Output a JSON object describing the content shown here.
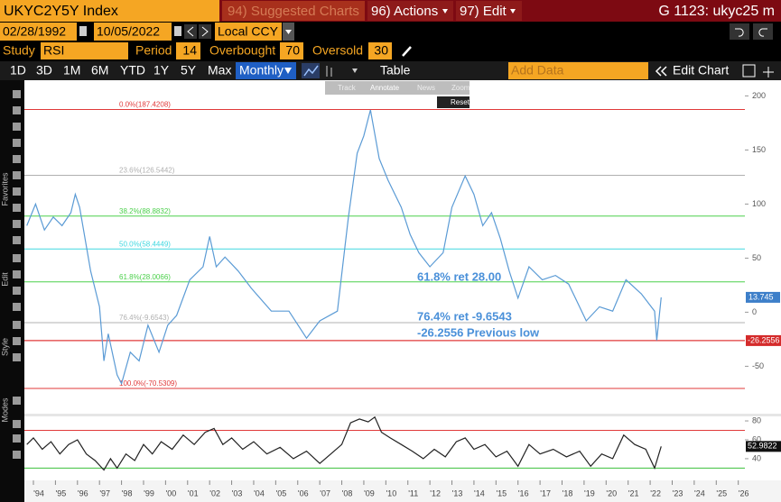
{
  "header": {
    "ticker": "UKYC2Y5Y Index",
    "suggested": "94) Suggested Charts",
    "actions": "96) Actions",
    "edit": "97) Edit",
    "chart_id": "G 1123: ukyc25 m"
  },
  "dates": {
    "start": "02/28/1992",
    "end": "10/05/2022",
    "currency": "Local CCY"
  },
  "study": {
    "label": "Study",
    "name": "RSI",
    "period_label": "Period",
    "period": 14,
    "overbought_label": "Overbought",
    "overbought": 70,
    "oversold_label": "Oversold",
    "oversold": 30
  },
  "toolbar": {
    "ranges": [
      "1D",
      "3D",
      "1M",
      "6M",
      "YTD",
      "1Y",
      "5Y",
      "Max"
    ],
    "frequency": "Monthly",
    "table": "Table",
    "add_data": "Add Data",
    "edit_chart": "Edit Chart"
  },
  "chart_tools": [
    "Track",
    "Annotate",
    "News",
    "Zoom"
  ],
  "reset": "Reset",
  "sidebar": [
    "Favorites",
    "Edit",
    "Style",
    "Modes"
  ],
  "chart_data": [
    {
      "type": "line",
      "color": "#5b9bd5",
      "x": [
        1993.7,
        1994.1,
        1994.5,
        1994.9,
        1995.3,
        1995.7,
        1995.9,
        1996.1,
        1996.6,
        1997.0,
        1997.2,
        1997.4,
        1997.8,
        1998.0,
        1998.4,
        1998.8,
        1999.2,
        1999.7,
        2000.1,
        2000.5,
        2001.1,
        2001.7,
        2002.0,
        2002.3,
        2002.7,
        2003.3,
        2003.9,
        2004.8,
        2005.6,
        2006.4,
        2007.0,
        2007.8,
        2008.3,
        2008.7,
        2009.0,
        2009.3,
        2009.7,
        2010.1,
        2010.7,
        2011.1,
        2011.5,
        2012.0,
        2012.6,
        2013.0,
        2013.6,
        2014.0,
        2014.4,
        2014.8,
        2015.2,
        2015.6,
        2016.0,
        2016.5,
        2017.1,
        2017.7,
        2018.3,
        2018.7,
        2019.1,
        2019.7,
        2020.3,
        2020.9,
        2021.6,
        2022.2,
        2022.3,
        2022.5
      ],
      "values": [
        80,
        100,
        76,
        88,
        80,
        92,
        109,
        97,
        38,
        5,
        -45,
        -20,
        -58,
        -66,
        -37,
        -45,
        -12,
        -37,
        -12,
        -3,
        30,
        42,
        70,
        42,
        51,
        38,
        22,
        1,
        1,
        -24,
        -8,
        1,
        88,
        147,
        163,
        187,
        142,
        122,
        97,
        72,
        55,
        42,
        55,
        97,
        126,
        109,
        80,
        92,
        68,
        38,
        13,
        42,
        30,
        34,
        26,
        9,
        -8,
        5,
        1,
        30,
        17,
        1,
        -26,
        13.745
      ],
      "xlim": [
        1993.59,
        2026.3
      ],
      "xticks": [
        {
          "value": 1994,
          "label": "'94"
        },
        {
          "value": 1995,
          "label": "'95"
        },
        {
          "value": 1996,
          "label": "'96"
        },
        {
          "value": 1997,
          "label": "'97"
        },
        {
          "value": 1998,
          "label": "'98"
        },
        {
          "value": 1999,
          "label": "'99"
        },
        {
          "value": 2000,
          "label": "'00"
        },
        {
          "value": 2001,
          "label": "'01"
        },
        {
          "value": 2002,
          "label": "'02"
        },
        {
          "value": 2003,
          "label": "'03"
        },
        {
          "value": 2004,
          "label": "'04"
        },
        {
          "value": 2005,
          "label": "'05"
        },
        {
          "value": 2006,
          "label": "'06"
        },
        {
          "value": 2007,
          "label": "'07"
        },
        {
          "value": 2008,
          "label": "'08"
        },
        {
          "value": 2009,
          "label": "'09"
        },
        {
          "value": 2010,
          "label": "'10"
        },
        {
          "value": 2011,
          "label": "'11"
        },
        {
          "value": 2012,
          "label": "'12"
        },
        {
          "value": 2013,
          "label": "'13"
        },
        {
          "value": 2014,
          "label": "'14"
        },
        {
          "value": 2015,
          "label": "'15"
        },
        {
          "value": 2016,
          "label": "'16"
        },
        {
          "value": 2017,
          "label": "'17"
        },
        {
          "value": 2018,
          "label": "'18"
        },
        {
          "value": 2019,
          "label": "'19"
        },
        {
          "value": 2020,
          "label": "'20"
        },
        {
          "value": 2021,
          "label": "'21"
        },
        {
          "value": 2022,
          "label": "'22"
        },
        {
          "value": 2023,
          "label": "'23"
        },
        {
          "value": 2024,
          "label": "'24"
        },
        {
          "value": 2025,
          "label": "'25"
        },
        {
          "value": 2026,
          "label": "'26"
        }
      ],
      "ylim": [
        -93,
        212
      ],
      "yticks": [
        -50,
        0,
        50,
        100,
        150,
        200
      ],
      "levels": [
        {
          "label": "0.0%(187.4208)",
          "value": 187.4208,
          "color": "#e03a3a"
        },
        {
          "label": "23.6%(126.5442)",
          "value": 126.5442,
          "color": "#b0b0b0"
        },
        {
          "label": "38.2%(88.8832)",
          "value": 88.8832,
          "color": "#4cd04c"
        },
        {
          "label": "50.0%(58.4449)",
          "value": 58.4449,
          "color": "#40d8e0"
        },
        {
          "label": "61.8%(28.0066)",
          "value": 28.0066,
          "color": "#4cd04c"
        },
        {
          "label": "76.4%(-9.6543)",
          "value": -9.6543,
          "color": "#b0b0b0"
        },
        {
          "label": "100.0%(-70.5309)",
          "value": -70.5309,
          "color": "#e03a3a"
        }
      ],
      "previous_low": -26.2556,
      "current": 13.745,
      "annotations": [
        "61.8% ret 28.00",
        "76.4% ret -9.6543",
        "-26.2556 Previous low"
      ]
    },
    {
      "type": "line",
      "color": "#222222",
      "x": [
        1993.7,
        1994.0,
        1994.4,
        1994.8,
        1995.2,
        1995.6,
        1996.0,
        1996.4,
        1996.8,
        1997.2,
        1997.5,
        1997.8,
        1998.2,
        1998.6,
        1999.0,
        1999.4,
        1999.8,
        2000.3,
        2000.8,
        2001.3,
        2001.8,
        2002.2,
        2002.6,
        2003.0,
        2003.5,
        2004.0,
        2004.6,
        2005.2,
        2005.8,
        2006.4,
        2007.0,
        2007.5,
        2008.0,
        2008.4,
        2008.8,
        2009.2,
        2009.5,
        2009.8,
        2010.2,
        2010.7,
        2011.2,
        2011.7,
        2012.2,
        2012.7,
        2013.2,
        2013.6,
        2014.0,
        2014.5,
        2015.0,
        2015.5,
        2016.0,
        2016.5,
        2017.0,
        2017.6,
        2018.2,
        2018.8,
        2019.3,
        2019.8,
        2020.3,
        2020.8,
        2021.3,
        2021.8,
        2022.2,
        2022.5
      ],
      "values": [
        55,
        62,
        50,
        58,
        45,
        55,
        60,
        45,
        38,
        28,
        40,
        30,
        45,
        38,
        55,
        45,
        58,
        50,
        65,
        55,
        68,
        72,
        55,
        62,
        50,
        58,
        45,
        52,
        40,
        48,
        35,
        45,
        55,
        78,
        82,
        79,
        84,
        68,
        62,
        55,
        48,
        40,
        50,
        42,
        58,
        62,
        50,
        55,
        42,
        48,
        32,
        55,
        45,
        50,
        42,
        48,
        32,
        45,
        40,
        65,
        55,
        50,
        30,
        52.9822
      ],
      "ylim": [
        18,
        84.8
      ],
      "yticks": [
        40,
        60,
        80
      ],
      "current": 52.9822
    }
  ]
}
